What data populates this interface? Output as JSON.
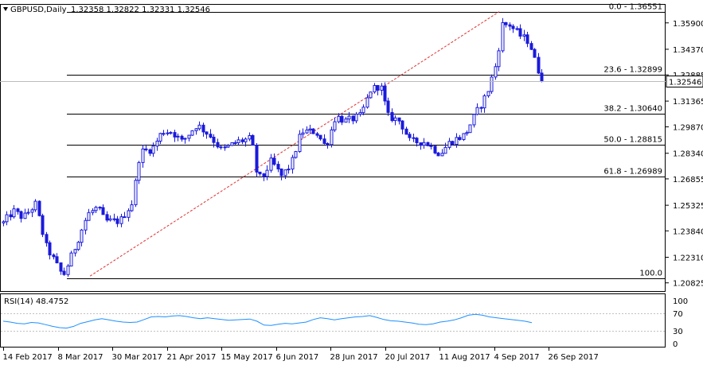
{
  "header": {
    "symbol": "GBPUSD,Daily",
    "ohlc": "1.32358 1.32822 1.32331 1.32546"
  },
  "colors": {
    "background": "#ffffff",
    "bull_candle": "#1a1adb",
    "bear_candle": "#1a1adb",
    "trendline": "#e03030",
    "fib_line": "#000000",
    "rsi_line": "#1e90ff",
    "current_price_line": "#bbbbbb"
  },
  "chart_data": [
    {
      "type": "candlestick",
      "symbol": "GBPUSD",
      "timeframe": "Daily",
      "last": {
        "open": 1.32358,
        "high": 1.32822,
        "low": 1.32331,
        "close": 1.32546
      },
      "current_price_label": "1.32546",
      "x_ticks": [
        "14 Feb 2017",
        "8 Mar 2017",
        "30 Mar 2017",
        "21 Apr 2017",
        "15 May 2017",
        "6 Jun 2017",
        "28 Jun 2017",
        "20 Jul 2017",
        "11 Aug 2017",
        "4 Sep 2017",
        "26 Sep 2017"
      ],
      "y_ticks": [
        "1.35900",
        "1.34370",
        "1.32885",
        "1.31365",
        "1.29870",
        "1.28340",
        "1.26855",
        "1.25325",
        "1.23840",
        "1.22310",
        "1.20825"
      ],
      "ylim": [
        1.2035,
        1.3695
      ],
      "fibonacci": [
        {
          "level": "0.0",
          "price": "1.36551",
          "label": "0.0 - 1.36551"
        },
        {
          "level": "23.6",
          "price": "1.32899",
          "label": "23.6 - 1.32899"
        },
        {
          "level": "38.2",
          "price": "1.30640",
          "label": "38.2 - 1.30640"
        },
        {
          "level": "50.0",
          "price": "1.28815",
          "label": "50.0 - 1.28815"
        },
        {
          "level": "61.8",
          "price": "1.26989",
          "label": "61.8 - 1.26989"
        },
        {
          "level": "100.0",
          "price": "1.21080",
          "label": "100.0"
        }
      ],
      "trendline": {
        "from": {
          "date": "10 Mar 2017",
          "price": 1.2108
        },
        "to": {
          "date": "20 Sep 2017",
          "price": 1.3655
        }
      },
      "legs": [
        {
          "d": 0,
          "p": 1.243
        },
        {
          "d": 4,
          "p": 1.25
        },
        {
          "d": 8,
          "p": 1.246
        },
        {
          "d": 13,
          "p": 1.254
        },
        {
          "d": 17,
          "p": 1.23
        },
        {
          "d": 24,
          "p": 1.212
        },
        {
          "d": 28,
          "p": 1.226
        },
        {
          "d": 34,
          "p": 1.248
        },
        {
          "d": 38,
          "p": 1.252
        },
        {
          "d": 41,
          "p": 1.244
        },
        {
          "d": 47,
          "p": 1.244
        },
        {
          "d": 52,
          "p": 1.255
        },
        {
          "d": 55,
          "p": 1.284
        },
        {
          "d": 60,
          "p": 1.286
        },
        {
          "d": 64,
          "p": 1.296
        },
        {
          "d": 68,
          "p": 1.296
        },
        {
          "d": 72,
          "p": 1.29
        },
        {
          "d": 78,
          "p": 1.3
        },
        {
          "d": 83,
          "p": 1.294
        },
        {
          "d": 88,
          "p": 1.285
        },
        {
          "d": 94,
          "p": 1.29
        },
        {
          "d": 100,
          "p": 1.292
        },
        {
          "d": 102,
          "p": 1.273
        },
        {
          "d": 104,
          "p": 1.268
        },
        {
          "d": 108,
          "p": 1.279
        },
        {
          "d": 112,
          "p": 1.27
        },
        {
          "d": 116,
          "p": 1.277
        },
        {
          "d": 120,
          "p": 1.296
        },
        {
          "d": 126,
          "p": 1.296
        },
        {
          "d": 130,
          "p": 1.287
        },
        {
          "d": 134,
          "p": 1.305
        },
        {
          "d": 138,
          "p": 1.302
        },
        {
          "d": 144,
          "p": 1.305
        },
        {
          "d": 148,
          "p": 1.32
        },
        {
          "d": 152,
          "p": 1.323
        },
        {
          "d": 155,
          "p": 1.305
        },
        {
          "d": 160,
          "p": 1.302
        },
        {
          "d": 164,
          "p": 1.29
        },
        {
          "d": 170,
          "p": 1.29
        },
        {
          "d": 176,
          "p": 1.283
        },
        {
          "d": 180,
          "p": 1.29
        },
        {
          "d": 186,
          "p": 1.294
        },
        {
          "d": 190,
          "p": 1.305
        },
        {
          "d": 195,
          "p": 1.318
        },
        {
          "d": 199,
          "p": 1.337
        },
        {
          "d": 201,
          "p": 1.358
        },
        {
          "d": 204,
          "p": 1.358
        },
        {
          "d": 208,
          "p": 1.352
        },
        {
          "d": 212,
          "p": 1.348
        },
        {
          "d": 214,
          "p": 1.338
        },
        {
          "d": 217,
          "p": 1.3255
        }
      ],
      "date_span": {
        "first_day_offset": 0,
        "last_day_offset": 217,
        "tick_step": 22
      }
    },
    {
      "type": "line",
      "indicator": "RSI(14)",
      "label": "RSI(14) 48.4752",
      "last_value": 48.4752,
      "y_ticks": [
        "100",
        "70",
        "30",
        "0"
      ],
      "levels": [
        70,
        30
      ],
      "ylim": [
        0,
        100
      ],
      "values": [
        52,
        50,
        47,
        46,
        49,
        48,
        44,
        40,
        37,
        36,
        40,
        47,
        51,
        55,
        58,
        55,
        52,
        50,
        49,
        50,
        56,
        62,
        63,
        62,
        64,
        65,
        63,
        60,
        58,
        60,
        58,
        56,
        54,
        55,
        56,
        57,
        52,
        43,
        42,
        45,
        47,
        46,
        48,
        50,
        56,
        60,
        58,
        55,
        58,
        60,
        62,
        63,
        65,
        61,
        56,
        53,
        52,
        50,
        48,
        45,
        44,
        46,
        50,
        52,
        55,
        60,
        66,
        68,
        66,
        62,
        60,
        58,
        56,
        54,
        52,
        48.4752
      ]
    }
  ]
}
